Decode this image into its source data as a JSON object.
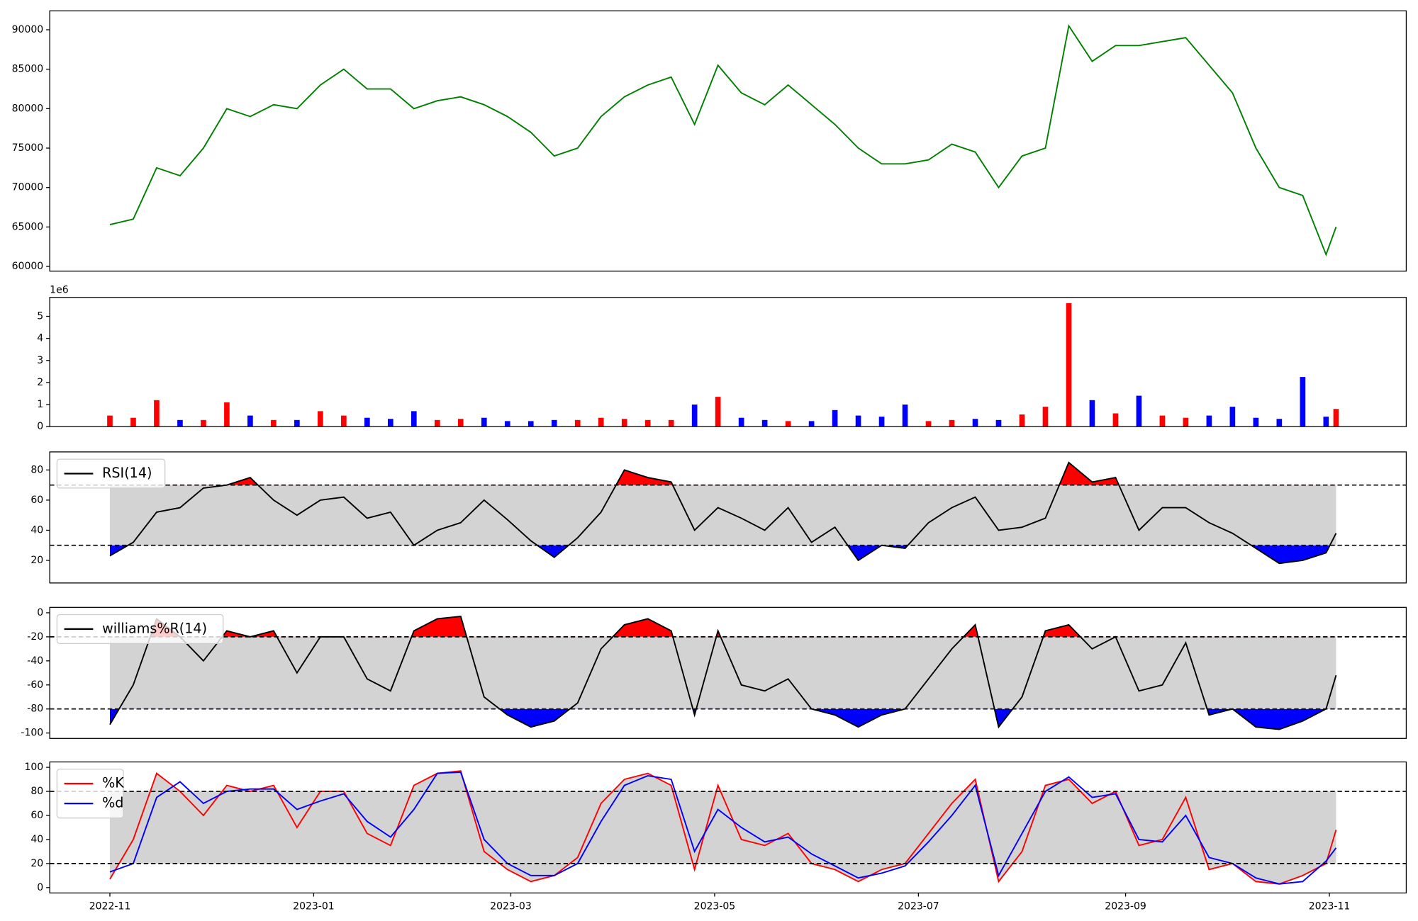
{
  "chart_data": [
    {
      "type": "line",
      "ylim": [
        59400,
        92400
      ],
      "yticks": [
        60000,
        65000,
        70000,
        75000,
        80000,
        85000,
        90000
      ],
      "series": [
        {
          "color": "#008000",
          "values": [
            65300,
            66000,
            72500,
            71500,
            75000,
            80000,
            79000,
            80500,
            80000,
            83000,
            85000,
            82500,
            82500,
            80000,
            81000,
            81500,
            80500,
            79000,
            77000,
            74000,
            75000,
            79000,
            81500,
            83000,
            84000,
            78000,
            85500,
            82000,
            80500,
            83000,
            80500,
            78000,
            75000,
            73000,
            73000,
            73500,
            75500,
            74500,
            70000,
            74000,
            75000,
            90500,
            86000,
            88000,
            88000,
            88500,
            89000,
            85500,
            82000,
            75000,
            70000,
            69000,
            61500,
            65000
          ]
        }
      ]
    },
    {
      "type": "bar",
      "ylim": [
        0,
        5.86
      ],
      "yticks": [
        0,
        1,
        2,
        3,
        4,
        5
      ],
      "offset_label": "1e6",
      "values": [
        0.5,
        0.4,
        1.2,
        0.3,
        0.3,
        1.1,
        0.5,
        0.3,
        0.3,
        0.7,
        0.5,
        0.4,
        0.35,
        0.7,
        0.3,
        0.35,
        0.4,
        0.25,
        0.25,
        0.3,
        0.3,
        0.4,
        0.35,
        0.3,
        0.3,
        1.0,
        1.35,
        0.4,
        0.3,
        0.25,
        0.25,
        0.75,
        0.5,
        0.45,
        1.0,
        0.25,
        0.3,
        0.35,
        0.3,
        0.55,
        0.9,
        5.6,
        1.2,
        0.6,
        1.4,
        0.5,
        0.4,
        0.5,
        0.9,
        0.4,
        0.35,
        2.25,
        0.45,
        0.8
      ],
      "colors": [
        "red",
        "red",
        "red",
        "blue",
        "red",
        "red",
        "blue",
        "red",
        "blue",
        "red",
        "red",
        "blue",
        "blue",
        "blue",
        "red",
        "red",
        "blue",
        "blue",
        "blue",
        "blue",
        "red",
        "red",
        "red",
        "red",
        "red",
        "blue",
        "red",
        "blue",
        "blue",
        "red",
        "blue",
        "blue",
        "blue",
        "blue",
        "blue",
        "red",
        "red",
        "blue",
        "blue",
        "red",
        "red",
        "red",
        "blue",
        "red",
        "blue",
        "red",
        "red",
        "blue",
        "blue",
        "blue",
        "blue",
        "blue",
        "blue",
        "red"
      ]
    },
    {
      "type": "bands",
      "ylim": [
        5,
        92
      ],
      "yticks": [
        20,
        40,
        60,
        80
      ],
      "bands": [
        30,
        70
      ],
      "legend": "upper left",
      "band_colors": {
        "between": "#d3d3d3",
        "above": "red",
        "below": "blue"
      },
      "series": [
        {
          "name": "RSI(14)",
          "color": "#000000",
          "values": [
            23,
            32,
            52,
            55,
            68,
            70,
            75,
            60,
            50,
            60,
            62,
            48,
            52,
            30,
            40,
            45,
            60,
            47,
            33,
            22,
            35,
            52,
            80,
            75,
            72,
            40,
            55,
            48,
            40,
            55,
            32,
            42,
            20,
            30,
            28,
            45,
            55,
            62,
            40,
            42,
            48,
            85,
            72,
            75,
            40,
            55,
            55,
            45,
            38,
            28,
            18,
            20,
            25,
            38
          ]
        }
      ]
    },
    {
      "type": "bands",
      "ylim": [
        -104.5,
        4.5
      ],
      "yticks": [
        -100,
        -80,
        -60,
        -40,
        -20,
        0
      ],
      "bands": [
        -80,
        -20
      ],
      "legend": "upper left",
      "band_colors": {
        "between": "#d3d3d3",
        "above": "red",
        "below": "blue"
      },
      "series": [
        {
          "name": "williams%R(14)",
          "color": "#000000",
          "values": [
            -93,
            -60,
            -5,
            -20,
            -40,
            -15,
            -20,
            -15,
            -50,
            -20,
            -20,
            -55,
            -65,
            -15,
            -5,
            -3,
            -70,
            -85,
            -95,
            -90,
            -75,
            -30,
            -10,
            -5,
            -15,
            -85,
            -15,
            -60,
            -65,
            -55,
            -80,
            -85,
            -95,
            -85,
            -80,
            -55,
            -30,
            -10,
            -95,
            -70,
            -15,
            -10,
            -30,
            -20,
            -65,
            -60,
            -25,
            -85,
            -80,
            -95,
            -97,
            -90,
            -80,
            -52
          ]
        }
      ]
    },
    {
      "type": "bands",
      "ylim": [
        -4.5,
        104.5
      ],
      "yticks": [
        0,
        20,
        40,
        60,
        80,
        100
      ],
      "bands": [
        20,
        80
      ],
      "legend": "upper left",
      "band_colors": {
        "between": "#d3d3d3",
        "above": "#d3d3d3",
        "below": "#d3d3d3"
      },
      "xlim": [
        "2022-10-14",
        "2023-11-24"
      ],
      "xticks": [
        {
          "value": "2022-11-01",
          "label": "2022-11"
        },
        {
          "value": "2023-01-01",
          "label": "2023-01"
        },
        {
          "value": "2023-03-01",
          "label": "2023-03"
        },
        {
          "value": "2023-05-01",
          "label": "2023-05"
        },
        {
          "value": "2023-07-01",
          "label": "2023-07"
        },
        {
          "value": "2023-09-01",
          "label": "2023-09"
        },
        {
          "value": "2023-11-01",
          "label": "2023-11"
        }
      ],
      "x": [
        "2022-11-01",
        "2022-11-08",
        "2022-11-15",
        "2022-11-22",
        "2022-11-29",
        "2022-12-06",
        "2022-12-13",
        "2022-12-20",
        "2022-12-27",
        "2023-01-03",
        "2023-01-10",
        "2023-01-17",
        "2023-01-24",
        "2023-01-31",
        "2023-02-07",
        "2023-02-14",
        "2023-02-21",
        "2023-02-28",
        "2023-03-07",
        "2023-03-14",
        "2023-03-21",
        "2023-03-28",
        "2023-04-04",
        "2023-04-11",
        "2023-04-18",
        "2023-04-25",
        "2023-05-02",
        "2023-05-09",
        "2023-05-16",
        "2023-05-23",
        "2023-05-30",
        "2023-06-06",
        "2023-06-13",
        "2023-06-20",
        "2023-06-27",
        "2023-07-04",
        "2023-07-11",
        "2023-07-18",
        "2023-07-25",
        "2023-08-01",
        "2023-08-08",
        "2023-08-15",
        "2023-08-22",
        "2023-08-29",
        "2023-09-05",
        "2023-09-12",
        "2023-09-19",
        "2023-09-26",
        "2023-10-03",
        "2023-10-10",
        "2023-10-17",
        "2023-10-24",
        "2023-10-31",
        "2023-11-03"
      ],
      "series": [
        {
          "name": "%K",
          "color": "red",
          "values": [
            7,
            40,
            95,
            80,
            60,
            85,
            80,
            85,
            50,
            80,
            80,
            45,
            35,
            85,
            95,
            97,
            30,
            15,
            5,
            10,
            25,
            70,
            90,
            95,
            85,
            15,
            85,
            40,
            35,
            45,
            20,
            15,
            5,
            15,
            20,
            45,
            70,
            90,
            5,
            30,
            85,
            90,
            70,
            80,
            35,
            40,
            75,
            15,
            20,
            5,
            3,
            10,
            20,
            48
          ]
        },
        {
          "name": "%d",
          "color": "blue",
          "values": [
            13,
            20,
            75,
            88,
            70,
            80,
            82,
            82,
            65,
            72,
            78,
            55,
            42,
            65,
            95,
            96,
            40,
            20,
            10,
            10,
            20,
            55,
            85,
            93,
            90,
            30,
            65,
            50,
            38,
            42,
            28,
            18,
            8,
            12,
            18,
            38,
            60,
            85,
            10,
            45,
            80,
            92,
            75,
            78,
            40,
            38,
            60,
            25,
            20,
            8,
            3,
            5,
            22,
            33
          ]
        }
      ]
    }
  ]
}
